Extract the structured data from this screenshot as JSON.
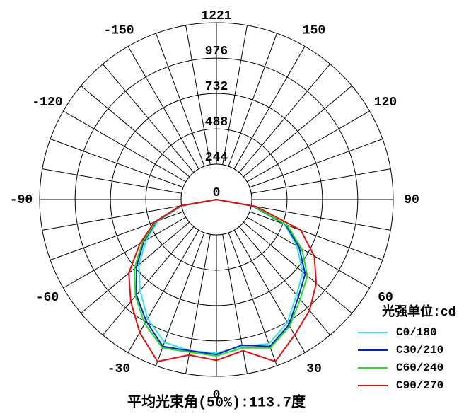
{
  "chart_data": {
    "type": "polar",
    "xticks": [
      -150,
      -120,
      -90,
      -60,
      -30,
      0,
      30,
      60,
      90,
      120,
      150
    ],
    "x": [
      -90,
      -80,
      -70,
      -60,
      -50,
      -40,
      -30,
      -20,
      -10,
      0,
      10,
      20,
      30,
      40,
      50,
      60,
      70,
      80,
      90
    ],
    "ylim": [
      0,
      1221
    ],
    "yticks": [
      0,
      244,
      488,
      732,
      976,
      1221
    ],
    "legend_title": "光强单位:cd",
    "annotation": "平均光束角(50%):113.7度",
    "series": [
      {
        "name": "C0/180",
        "color": "#33e6e6",
        "values": [
          0,
          240,
          430,
          560,
          700,
          820,
          950,
          1050,
          1060,
          1060,
          1030,
          1060,
          980,
          860,
          780,
          640,
          500,
          250,
          0
        ]
      },
      {
        "name": "C30/210",
        "color": "#0022cc",
        "values": [
          0,
          245,
          440,
          580,
          720,
          860,
          970,
          1080,
          1060,
          1070,
          1020,
          1080,
          1000,
          880,
          800,
          660,
          510,
          255,
          0
        ]
      },
      {
        "name": "C60/240",
        "color": "#22dd22",
        "values": [
          0,
          250,
          445,
          590,
          740,
          870,
          990,
          1090,
          1070,
          1080,
          1040,
          1090,
          1010,
          900,
          820,
          680,
          520,
          260,
          0
        ]
      },
      {
        "name": "C90/270",
        "color": "#e01010",
        "values": [
          0,
          255,
          455,
          610,
          790,
          920,
          1060,
          1190,
          1090,
          1110,
          1060,
          1190,
          1080,
          1000,
          900,
          780,
          620,
          280,
          0
        ]
      }
    ]
  }
}
